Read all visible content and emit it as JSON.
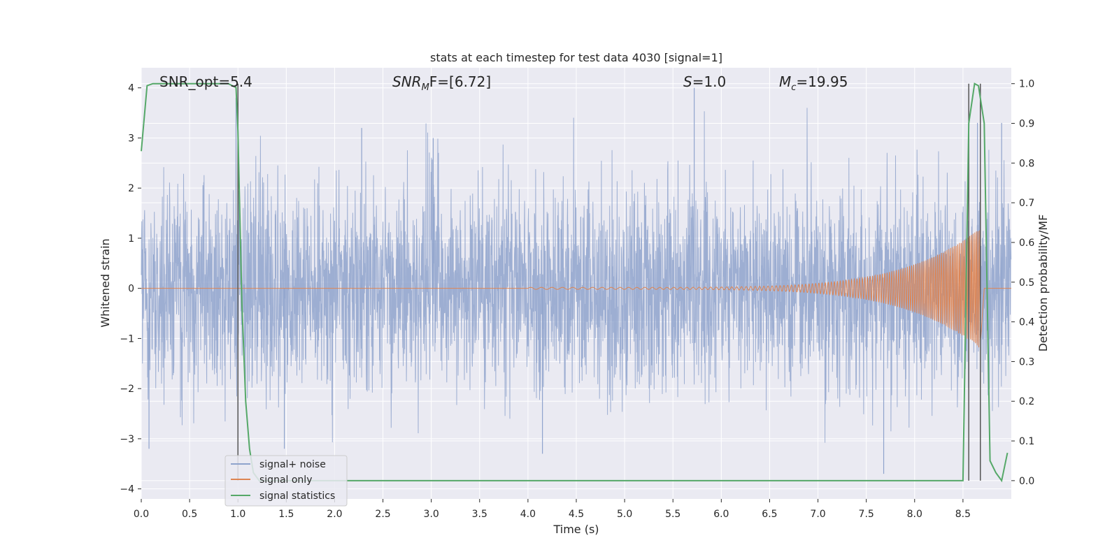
{
  "chart_data": {
    "type": "line",
    "title": "stats at each timestep for test data 4030 [signal=1]",
    "xlabel": "Time (s)",
    "ylabel": "Whitened strain",
    "y2label": "Detection probability/MF",
    "xlim": [
      0,
      9
    ],
    "ylim": [
      -4.2,
      4.4
    ],
    "y2lim": [
      -0.046,
      1.04
    ],
    "xticks": [
      0.0,
      0.5,
      1.0,
      1.5,
      2.0,
      2.5,
      3.0,
      3.5,
      4.0,
      4.5,
      5.0,
      5.5,
      6.0,
      6.5,
      7.0,
      7.5,
      8.0,
      8.5
    ],
    "yticks": [
      4,
      3,
      2,
      1,
      0,
      -1,
      -2,
      -3,
      -4
    ],
    "y2ticks": [
      1.0,
      0.9,
      0.8,
      0.7,
      0.6,
      0.5,
      0.4,
      0.3,
      0.2,
      0.1,
      0.0
    ],
    "grid": true,
    "legend_position": "lower-left",
    "colors": {
      "plot_bg": "#eaeaf2",
      "grid": "#ffffff",
      "noise": "#8fa3cc",
      "signal": "#dd8452",
      "stats": "#55a868",
      "marker": "#555555"
    },
    "annotations": {
      "snr_opt": "SNR_opt=5.4",
      "snr_mf_prefix": "SNR",
      "snr_mf_sub": "M",
      "snr_mf_suffix": "F=[6.72]",
      "s_prefix": "S",
      "s_suffix": "=1.0",
      "mc_prefix": "M",
      "mc_sub": "c",
      "mc_suffix": "=19.95"
    },
    "series": [
      {
        "name": "signal+ noise",
        "kind": "noise",
        "duration": 9.0,
        "sigma": 1.0,
        "peaks": [
          [
            0.98,
            3.8
          ],
          [
            1.48,
            -3.2
          ],
          [
            2.28,
            3.2
          ],
          [
            3.02,
            3.0
          ],
          [
            5.72,
            4.0
          ],
          [
            4.15,
            -3.3
          ],
          [
            7.68,
            -3.7
          ],
          [
            8.65,
            3.3
          ],
          [
            8.9,
            3.3
          ],
          [
            0.08,
            -3.2
          ]
        ]
      },
      {
        "name": "signal only",
        "kind": "chirp",
        "t_start": 4.0,
        "t_merge": 8.68,
        "amp_start": 0.02,
        "amp_peak": 1.2,
        "freq_start": 9,
        "freq_end": 60
      },
      {
        "name": "signal statistics",
        "kind": "probability",
        "x": [
          0.0,
          0.06,
          0.12,
          0.2,
          0.3,
          0.4,
          0.5,
          0.6,
          0.7,
          0.8,
          0.9,
          0.98,
          1.0,
          1.04,
          1.08,
          1.12,
          1.16,
          1.22,
          1.3,
          1.5,
          2.0,
          3.0,
          4.0,
          5.0,
          6.0,
          7.0,
          8.0,
          8.4,
          8.5,
          8.56,
          8.62,
          8.66,
          8.72,
          8.78,
          8.84,
          8.9,
          8.96
        ],
        "y": [
          0.83,
          0.995,
          1.0,
          1.0,
          1.0,
          1.0,
          1.0,
          1.0,
          1.0,
          1.0,
          1.0,
          0.99,
          0.88,
          0.45,
          0.2,
          0.08,
          0.02,
          0.0,
          0.0,
          0.0,
          0.0,
          0.0,
          0.0,
          0.0,
          0.0,
          0.0,
          0.0,
          0.0,
          0.0,
          0.9,
          1.0,
          0.995,
          0.9,
          0.05,
          0.02,
          0.0,
          0.07
        ]
      }
    ],
    "markers_x": [
      1.0,
      8.56,
      8.68
    ]
  }
}
